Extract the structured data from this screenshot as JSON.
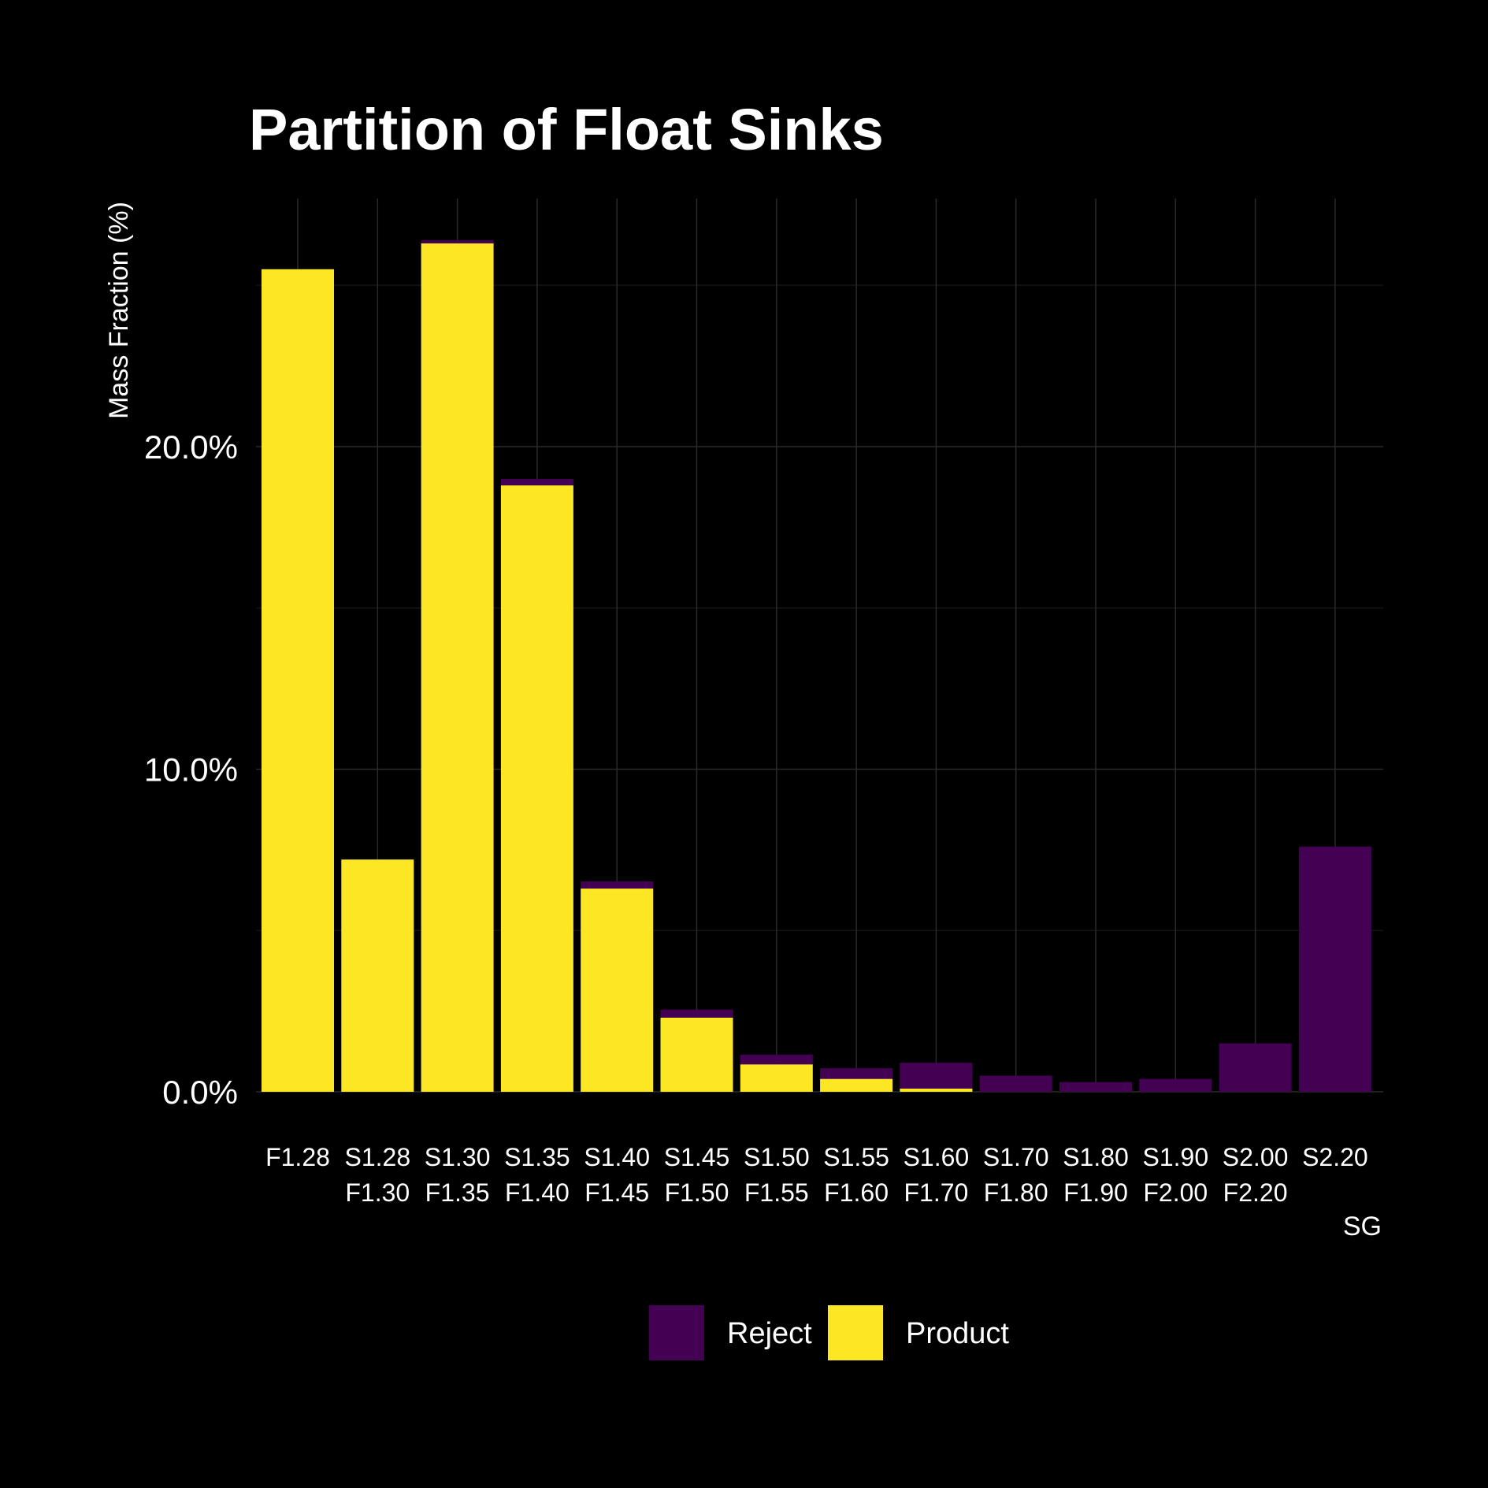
{
  "chart_data": {
    "type": "bar",
    "stacked": true,
    "title": "Partition of Float Sinks",
    "xlabel": "SG",
    "ylabel": "Mass Fraction (%)",
    "ylim": [
      0,
      27.3
    ],
    "yticks": [
      "0.0%",
      "10.0%",
      "20.0%"
    ],
    "ytick_values": [
      0,
      10,
      20
    ],
    "grid": true,
    "legend_position": "bottom",
    "categories": [
      [
        "F1.28"
      ],
      [
        "S1.28",
        "F1.30"
      ],
      [
        "S1.30",
        "F1.35"
      ],
      [
        "S1.35",
        "F1.40"
      ],
      [
        "S1.40",
        "F1.45"
      ],
      [
        "S1.45",
        "F1.50"
      ],
      [
        "S1.50",
        "F1.55"
      ],
      [
        "S1.55",
        "F1.60"
      ],
      [
        "S1.60",
        "F1.70"
      ],
      [
        "S1.70",
        "F1.80"
      ],
      [
        "S1.80",
        "F1.90"
      ],
      [
        "S1.90",
        "F2.00"
      ],
      [
        "S2.00",
        "F2.20"
      ],
      [
        "S2.20"
      ]
    ],
    "series": [
      {
        "name": "Product",
        "color": "#fde725",
        "values": [
          25.5,
          7.2,
          26.3,
          18.8,
          6.3,
          2.3,
          0.85,
          0.4,
          0.1,
          0,
          0,
          0,
          0,
          0
        ]
      },
      {
        "name": "Reject",
        "color": "#440154",
        "values": [
          0,
          0,
          0.1,
          0.2,
          0.22,
          0.25,
          0.3,
          0.33,
          0.8,
          0.5,
          0.3,
          0.4,
          1.5,
          7.6
        ]
      }
    ],
    "legend": [
      {
        "name": "Reject",
        "color": "#440154"
      },
      {
        "name": "Product",
        "color": "#fde725"
      }
    ]
  }
}
